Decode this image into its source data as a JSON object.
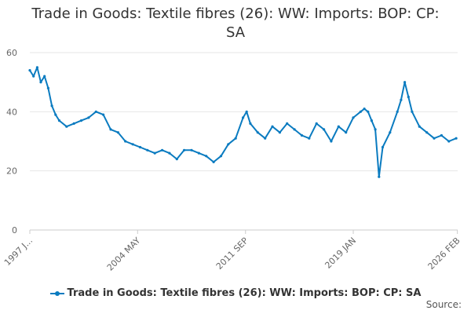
{
  "chart_data": {
    "type": "line",
    "title": "Trade in Goods: Textile fibres (26): WW: Imports: BOP: CP: SA",
    "title_lines": [
      "Trade in Goods: Textile fibres (26): WW: Imports: BOP: CP:",
      "SA"
    ],
    "xlabel": "",
    "ylabel": "",
    "ylim": [
      0,
      60
    ],
    "yticks": [
      0,
      20,
      40,
      60
    ],
    "x_range": [
      1997,
      2026.1
    ],
    "xticks": [
      {
        "x": 1997.0,
        "label": "1997 J..."
      },
      {
        "x": 2004.33,
        "label": "2004 MAY"
      },
      {
        "x": 2011.67,
        "label": "2011 SEP"
      },
      {
        "x": 2019.0,
        "label": "2019 JAN"
      },
      {
        "x": 2026.08,
        "label": "2026 FEB"
      }
    ],
    "grid": true,
    "legend": "bottom-center",
    "color": "#0a7bc0",
    "series": [
      {
        "name": "Trade in Goods: Textile fibres (26): WW: Imports: BOP: CP: SA",
        "x": [
          1997.0,
          1997.25,
          1997.5,
          1997.75,
          1998.0,
          1998.25,
          1998.5,
          1998.75,
          1999.0,
          1999.5,
          2000.0,
          2000.5,
          2001.0,
          2001.5,
          2002.0,
          2002.5,
          2003.0,
          2003.5,
          2004.0,
          2004.5,
          2005.0,
          2005.5,
          2006.0,
          2006.5,
          2007.0,
          2007.5,
          2008.0,
          2008.5,
          2009.0,
          2009.5,
          2010.0,
          2010.5,
          2011.0,
          2011.5,
          2011.75,
          2012.0,
          2012.5,
          2013.0,
          2013.5,
          2014.0,
          2014.5,
          2015.0,
          2015.5,
          2016.0,
          2016.5,
          2017.0,
          2017.5,
          2018.0,
          2018.5,
          2019.0,
          2019.5,
          2019.75,
          2020.0,
          2020.25,
          2020.5,
          2020.75,
          2021.0,
          2021.5,
          2022.0,
          2022.25,
          2022.5,
          2022.75,
          2023.0,
          2023.5,
          2024.0,
          2024.5,
          2025.0,
          2025.5,
          2026.0
        ],
        "values": [
          54,
          52,
          55,
          50,
          52,
          48,
          42,
          39,
          37,
          35,
          36,
          37,
          38,
          40,
          39,
          34,
          33,
          30,
          29,
          28,
          27,
          26,
          27,
          26,
          24,
          27,
          27,
          26,
          25,
          23,
          25,
          29,
          31,
          38,
          40,
          36,
          33,
          31,
          35,
          33,
          36,
          34,
          32,
          31,
          36,
          34,
          30,
          35,
          33,
          38,
          40,
          41,
          40,
          37,
          34,
          18,
          28,
          33,
          40,
          44,
          50,
          45,
          40,
          35,
          33,
          31,
          32,
          30,
          31
        ]
      }
    ]
  },
  "legend": {
    "label": "Trade in Goods: Textile fibres (26): WW: Imports: BOP: CP: SA"
  },
  "footer": {
    "source_label": "Source:"
  }
}
